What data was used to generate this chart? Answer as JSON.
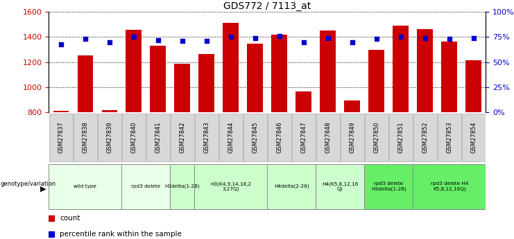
{
  "title": "GDS772 / 7113_at",
  "samples": [
    "GSM27837",
    "GSM27838",
    "GSM27839",
    "GSM27840",
    "GSM27841",
    "GSM27842",
    "GSM27843",
    "GSM27844",
    "GSM27845",
    "GSM27846",
    "GSM27847",
    "GSM27848",
    "GSM27849",
    "GSM27850",
    "GSM27851",
    "GSM27852",
    "GSM27853",
    "GSM27854"
  ],
  "counts": [
    810,
    1255,
    815,
    1460,
    1330,
    1185,
    1265,
    1515,
    1345,
    1420,
    965,
    1455,
    895,
    1300,
    1490,
    1465,
    1365,
    1215
  ],
  "percentiles": [
    68,
    73,
    70,
    75,
    72,
    71,
    71,
    75,
    74,
    76,
    70,
    74,
    70,
    73,
    75,
    74,
    73,
    74
  ],
  "bar_color": "#cc0000",
  "dot_color": "#0000cc",
  "ylim_left": [
    800,
    1600
  ],
  "ylim_right": [
    0,
    100
  ],
  "yticks_left": [
    800,
    1000,
    1200,
    1400,
    1600
  ],
  "yticks_right": [
    0,
    25,
    50,
    75,
    100
  ],
  "groups": [
    {
      "label": "wild type",
      "start": 0,
      "end": 2,
      "color": "#e8ffe8"
    },
    {
      "label": "rpd3 delete",
      "start": 3,
      "end": 4,
      "color": "#e8ffe8"
    },
    {
      "label": "H3delta(1-28)",
      "start": 5,
      "end": 5,
      "color": "#ccffcc"
    },
    {
      "label": "H3(K4,9,14,18,2\n3,27Q)",
      "start": 6,
      "end": 8,
      "color": "#ccffcc"
    },
    {
      "label": "H4delta(2-26)",
      "start": 9,
      "end": 10,
      "color": "#ccffcc"
    },
    {
      "label": "H4(K5,8,12,16\nQ)",
      "start": 11,
      "end": 12,
      "color": "#ccffcc"
    },
    {
      "label": "rpd3 delete\nH3delta(1-28)",
      "start": 13,
      "end": 14,
      "color": "#66ee66"
    },
    {
      "label": "rpd3 delete H4\nK5,8,12,16Q)",
      "start": 15,
      "end": 17,
      "color": "#66ee66"
    }
  ],
  "legend_count_color": "#cc0000",
  "legend_pct_color": "#0000cc",
  "genotype_label": "genotype/variation",
  "right_axis_color": "#0000cc",
  "sample_box_color": "#d8d8d8",
  "bg_color": "#ffffff"
}
